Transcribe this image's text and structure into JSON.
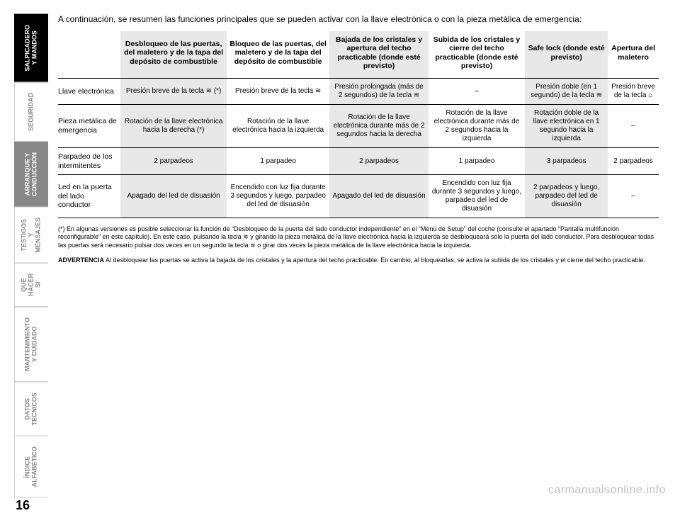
{
  "page_number": "16",
  "side_tabs": [
    {
      "label": "SALPICADERO Y MANDOS",
      "state": "active"
    },
    {
      "label": "SEGURIDAD",
      "state": "normal"
    },
    {
      "label": "ARRANQUE Y CONDUCCIÓN",
      "state": "semi"
    },
    {
      "label": "TESTIGOS Y MENSAJES",
      "state": "normal"
    },
    {
      "label": "QUÉ HACER SI",
      "state": "normal"
    },
    {
      "label": "MANTENIMIENTO Y CUIDADO",
      "state": "normal"
    },
    {
      "label": "DATOS TÉCNICOS",
      "state": "normal"
    },
    {
      "label": "ÍNDICE ALFABÉTICO",
      "state": "normal"
    }
  ],
  "intro": "A continuación, se resumen las funciones principales que se pueden activar con la llave electrónica o con la pieza metálica de emergencia:",
  "table": {
    "columns": [
      "",
      "Desbloqueo de las puertas, del maletero y de la tapa del depósito de combustible",
      "Bloqueo de las puertas, del maletero y de la tapa del depósito de combustible",
      "Bajada de los cristales y apertura del techo practicable (donde esté previsto)",
      "Subida de los cristales y cierre del techo practicable (donde esté previsto)",
      "Safe lock (donde esté previsto)",
      "Apertura del maletero"
    ],
    "banded_cols": [
      1,
      3,
      5
    ],
    "rows": [
      {
        "label": "Llave electrónica",
        "cells": [
          "Presión breve de la tecla ≋ (*)",
          "Presión breve de la tecla ≋",
          "Presión prolongada (más de 2 segundos) de la tecla ≋",
          "–",
          "Presión doble (en 1 segundo) de la tecla ≋",
          "Presión breve de la tecla ⌂"
        ]
      },
      {
        "label": "Pieza metálica de emergencia",
        "cells": [
          "Rotación de la llave electrónica hacia la derecha (*)",
          "Rotación de la llave electrónica hacia la izquierda",
          "Rotación de la llave electrónica durante más de 2 segundos hacia la derecha",
          "Rotación de la llave electrónica durante más de 2 segundos hacia la izquierda",
          "Rotación doble de la llave electrónica en 1 segundo hacia la izquierda",
          "–"
        ]
      },
      {
        "label": "Parpadeo de los intermitentes",
        "cells": [
          "2 parpadeos",
          "1 parpadeo",
          "2 parpadeos",
          "1 parpadeo",
          "3 parpadeos",
          "2 parpadeos"
        ]
      },
      {
        "label": "Led en la puerta del lado conductor",
        "cells": [
          "Apagado del led de disuasión",
          "Encendido con luz fija durante 3 segundos y luego, parpadeo del led de disuasión",
          "Apagado del led de disuasión",
          "Encendido con luz fija durante 3 segundos y luego, parpadeo del led de disuasión",
          "2 parpadeos y luego, parpadeo del led de disuasión",
          "–"
        ]
      }
    ]
  },
  "footnote_star": "(*) En algunas versiones es posible seleccionar la función de “Desbloqueo de la puerta del lado conductor independiente” en el “Menú de Setup” del coche (consulte el apartado “Pantalla multifunción reconfigurable” en este capítulo). En este caso, pulsando la tecla ≋ y girando la pieza metálica de la llave electrónica hacia la izquierda se desbloqueará sólo la puerta del lado conductor. Para desbloquear todas las puertas será necesario pulsar dos veces en un segundo la tecla ≋ o girar dos veces la pieza metálica de la llave electrónica hacia la izquierda.",
  "footnote_adv_label": "ADVERTENCIA",
  "footnote_adv": " Al desbloquear las puertas se activa la bajada de los cristales y la apertura del techo practicable. En cambio, al bloquearlas, se activa la subida de los cristales y el cierre del techo practicable.",
  "watermark": "carmanualsonline.info"
}
